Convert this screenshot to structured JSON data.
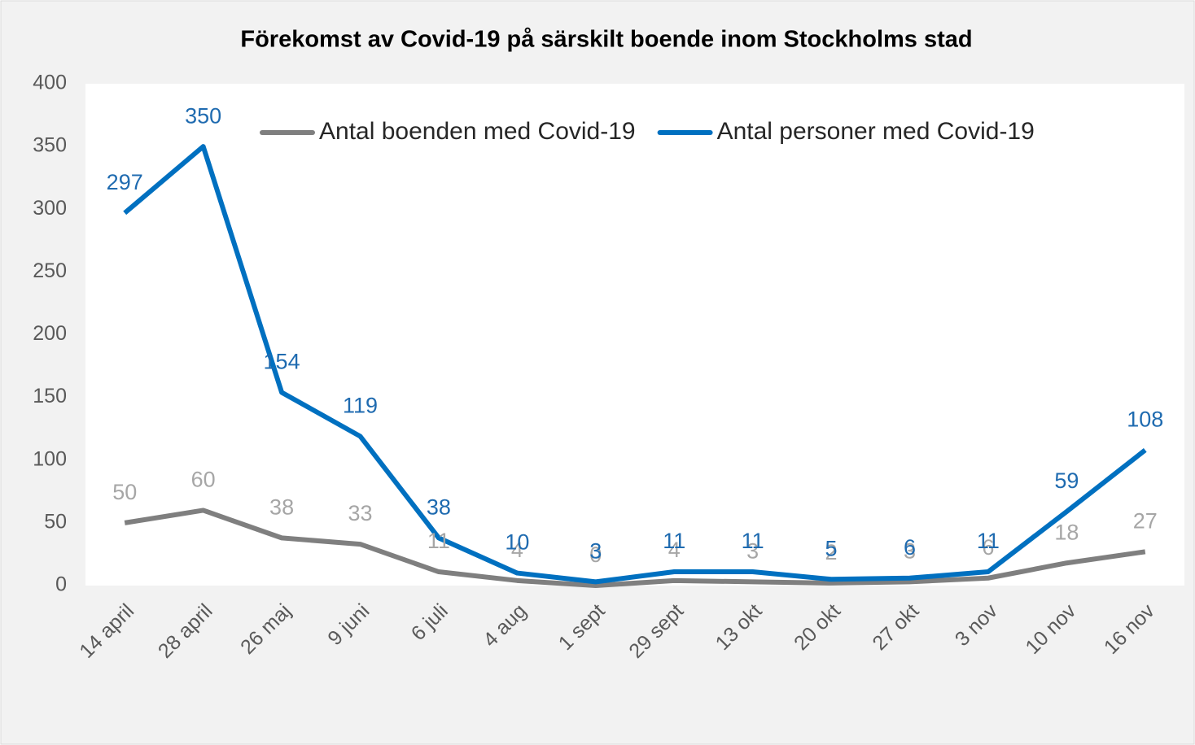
{
  "chart_data": {
    "type": "line",
    "title": "Förekomst av Covid-19 på särskilt boende inom Stockholms stad",
    "categories": [
      "14 april",
      "28 april",
      "26 maj",
      "9 juni",
      "6 juli",
      "4 aug",
      "1 sept",
      "29 sept",
      "13 okt",
      "20 okt",
      "27 okt",
      "3 nov",
      "10 nov",
      "16 nov"
    ],
    "series": [
      {
        "name": "Antal boenden med Covid-19",
        "color": "#7f7f7f",
        "values": [
          50,
          60,
          38,
          33,
          11,
          4,
          0,
          4,
          3,
          2,
          3,
          6,
          18,
          27
        ]
      },
      {
        "name": "Antal personer med Covid-19",
        "color": "#0070c0",
        "values": [
          297,
          350,
          154,
          119,
          38,
          10,
          3,
          11,
          11,
          5,
          6,
          11,
          59,
          108
        ]
      }
    ],
    "ylim": [
      0,
      400
    ],
    "yticks": [
      0,
      50,
      100,
      150,
      200,
      250,
      300,
      350,
      400
    ],
    "grid": false,
    "legend": "top-right",
    "data_labels": true
  }
}
